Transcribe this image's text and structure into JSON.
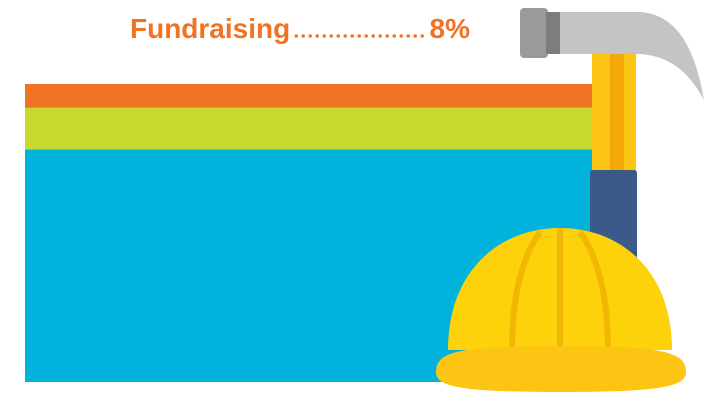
{
  "chart_data": {
    "type": "stacked-band",
    "categories": [
      "Fundraising",
      null,
      null
    ],
    "values": [
      8,
      14,
      78
    ],
    "value_labels": [
      "8%",
      null,
      null
    ],
    "colors": [
      "#f07324",
      "#c5d92f",
      "#00b2dc"
    ]
  }
}
